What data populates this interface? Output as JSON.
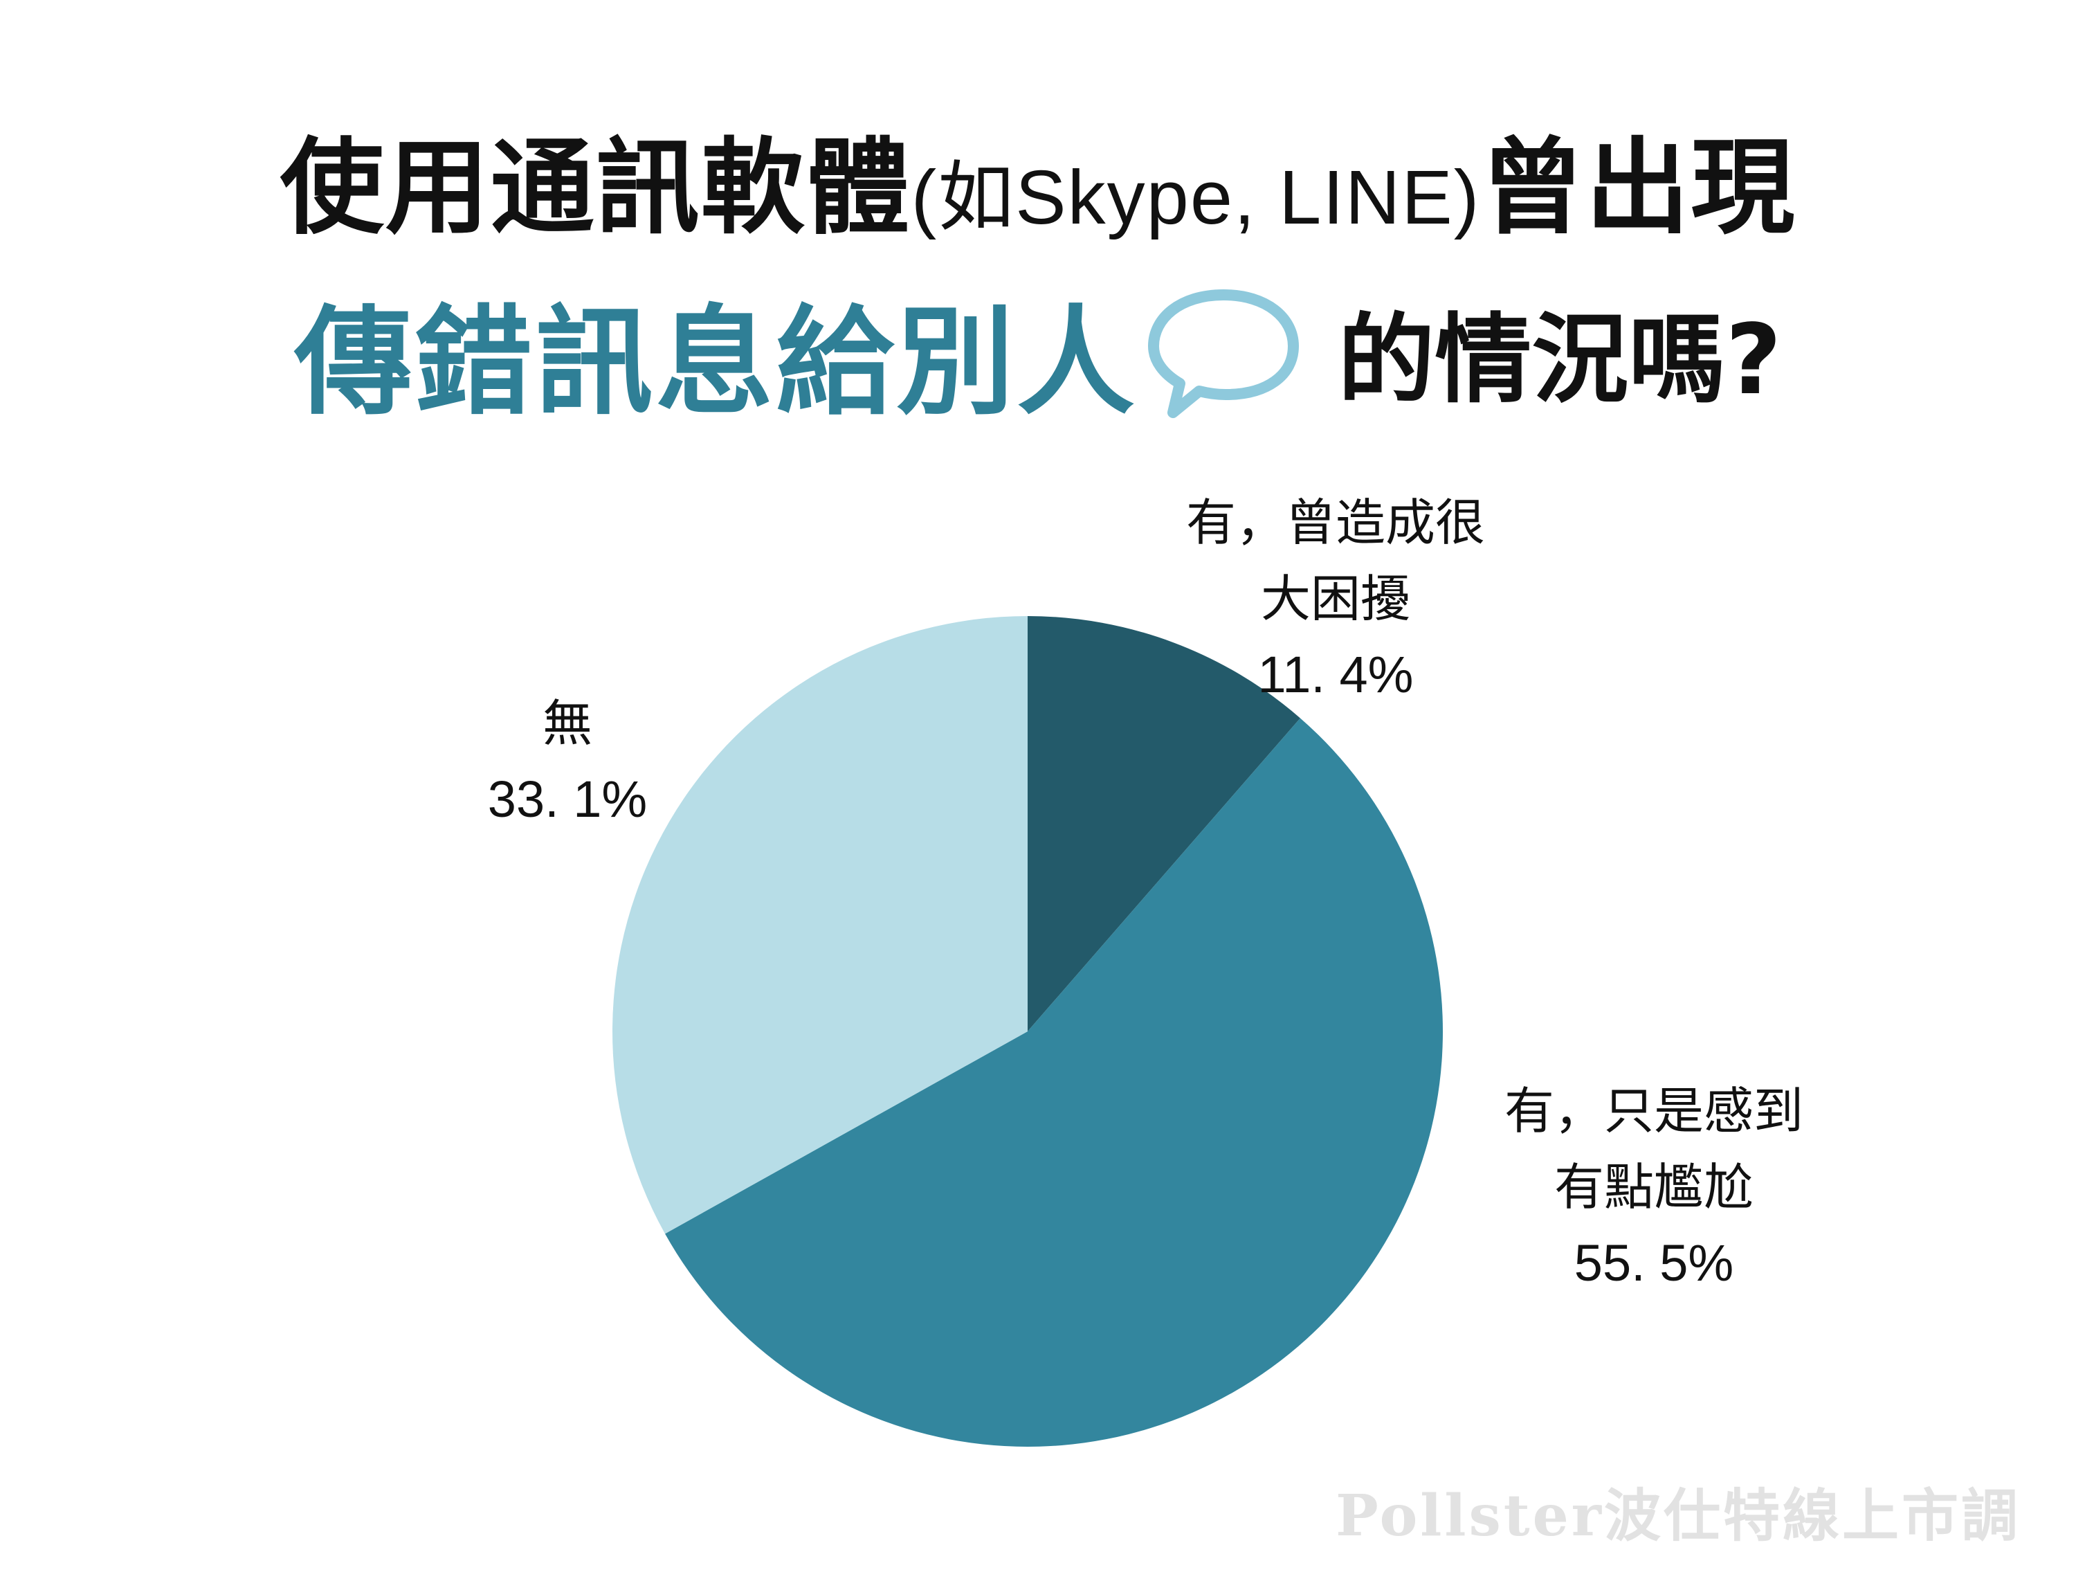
{
  "title": {
    "line1_main": "使用通訊軟體",
    "line1_paren": "(如Skype, LINE)",
    "line1_end": "曾出現",
    "line2_accent": "傳錯訊息給別人",
    "line2_rest": "的情況嗎?"
  },
  "icons": {
    "speech_bubble": "speech-bubble-icon"
  },
  "colors": {
    "accent": "#2f7f96",
    "slice_dark": "#235a6a",
    "slice_mid": "#33869e",
    "slice_light": "#b7dde7"
  },
  "chart_data": {
    "type": "pie",
    "slices": [
      {
        "label_line1": "有，曾造成很",
        "label_line2": "大困擾",
        "value": 11.4,
        "display": "11. 4%",
        "color": "#235a6a"
      },
      {
        "label_line1": "有，只是感到",
        "label_line2": "有點尷尬",
        "value": 55.5,
        "display": "55. 5%",
        "color": "#33869e"
      },
      {
        "label_line1": "無",
        "label_line2": "",
        "value": 33.1,
        "display": "33. 1%",
        "color": "#b7dde7"
      }
    ],
    "start_angle": "12 o'clock",
    "direction": "clockwise"
  },
  "watermark": "Pollster波仕特線上市調"
}
